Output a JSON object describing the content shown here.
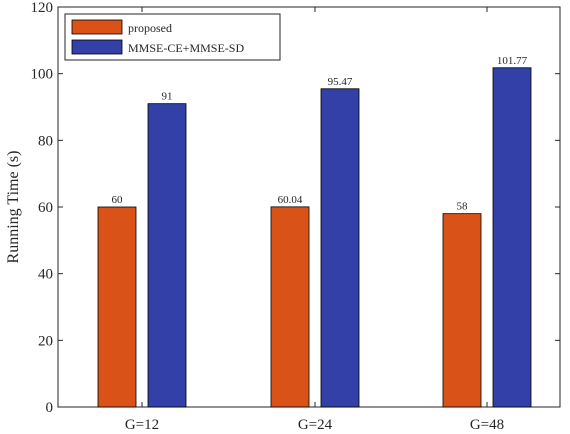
{
  "chart_data": {
    "type": "bar",
    "categories": [
      "G=12",
      "G=24",
      "G=48"
    ],
    "series": [
      {
        "name": "proposed",
        "values": [
          60,
          60.04,
          58
        ],
        "labels": [
          "60",
          "60.04",
          "58"
        ],
        "color": "#D95319"
      },
      {
        "name": "MMSE-CE+MMSE-SD",
        "values": [
          91,
          95.47,
          101.77
        ],
        "labels": [
          "91",
          "95.47",
          "101.77"
        ],
        "color": "#3240A8"
      }
    ],
    "ylabel": "Running Time (s)",
    "ylim": [
      0,
      120
    ],
    "yticks": [
      0,
      20,
      40,
      60,
      80,
      100,
      120
    ],
    "grid": false,
    "legend_position": "top-left"
  }
}
